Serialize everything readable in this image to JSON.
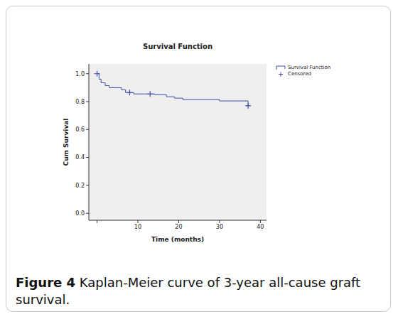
{
  "chart_data": {
    "type": "line",
    "title": "Survival Function",
    "x_label": "Time (months)",
    "y_label": "Cum Survival",
    "xlim": [
      -2,
      41.5
    ],
    "xticks": [
      0,
      10,
      20,
      30,
      40
    ],
    "ylim": [
      -0.05,
      1.07
    ],
    "yticks": [
      {
        "value": 0,
        "label": "0.0"
      },
      {
        "value": 0.2,
        "label": "0.2"
      },
      {
        "value": 0.4,
        "label": "0.4"
      },
      {
        "value": 0.6,
        "label": "0.6"
      },
      {
        "value": 0.8,
        "label": "0.8"
      },
      {
        "value": 1,
        "label": "1.0"
      }
    ],
    "grid": false,
    "legend": "right",
    "series": [
      {
        "name": "Survival Function",
        "type": "line",
        "line_style": "step",
        "color": "#3b4ea6",
        "x": [
          0,
          0.5,
          1,
          2,
          3,
          6,
          7,
          9,
          14,
          17,
          19,
          21,
          30,
          37
        ],
        "values": [
          1.0,
          0.96,
          0.935,
          0.915,
          0.9,
          0.885,
          0.865,
          0.855,
          0.85,
          0.835,
          0.825,
          0.815,
          0.805,
          0.77
        ]
      },
      {
        "name": "Censored",
        "type": "scatter",
        "marker": "plus",
        "color": "#3b4ea6",
        "x": [
          0,
          8,
          13,
          37
        ],
        "values": [
          1.0,
          0.865,
          0.855,
          0.77
        ]
      }
    ]
  },
  "caption": {
    "label": "Figure 4",
    "text": "Kaplan-Meier curve of 3-year all-cause graft survival."
  }
}
